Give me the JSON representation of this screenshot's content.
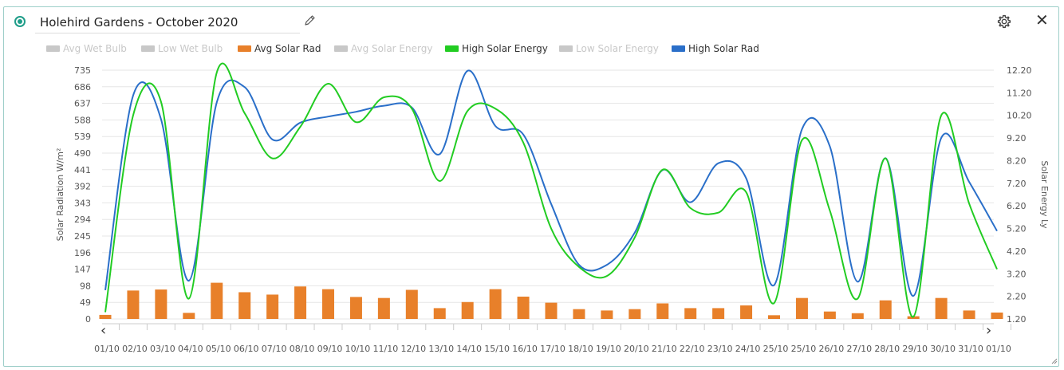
{
  "header": {
    "title": "Holehird Gardens - October 2020"
  },
  "icons": {
    "radio": "radio-selected-icon",
    "edit": "pencil-icon",
    "settings": "gear-icon",
    "close": "close-icon",
    "prev": "chevron-left-icon",
    "next": "chevron-right-icon",
    "resize": "resize-handle-icon"
  },
  "close_glyph": "✕",
  "nav": {
    "prev_glyph": "‹",
    "next_glyph": "›"
  },
  "legend": [
    {
      "label": "Avg Wet Bulb",
      "color": "#c8c8c8",
      "enabled": false
    },
    {
      "label": "Low Wet Bulb",
      "color": "#c8c8c8",
      "enabled": false
    },
    {
      "label": "Avg Solar Rad",
      "color": "#e8802a",
      "enabled": true
    },
    {
      "label": "Avg Solar Energy",
      "color": "#c8c8c8",
      "enabled": false
    },
    {
      "label": "High Solar Energy",
      "color": "#22cc22",
      "enabled": true
    },
    {
      "label": "Low Solar Energy",
      "color": "#c8c8c8",
      "enabled": false
    },
    {
      "label": "High Solar Rad",
      "color": "#2a6fc9",
      "enabled": true
    }
  ],
  "chart_data": {
    "type": "bar+line",
    "title": "Holehird Gardens - October 2020",
    "categories": [
      "01/10",
      "02/10",
      "03/10",
      "04/10",
      "05/10",
      "06/10",
      "07/10",
      "08/10",
      "09/10",
      "10/10",
      "11/10",
      "12/10",
      "13/10",
      "14/10",
      "15/10",
      "16/10",
      "17/10",
      "18/10",
      "19/10",
      "20/10",
      "21/10",
      "22/10",
      "23/10",
      "24/10",
      "25/10",
      "25/10",
      "26/10",
      "27/10",
      "28/10",
      "29/10",
      "30/10",
      "31/10",
      "01/10"
    ],
    "ylabel_left": "Solar Radiation W/m²",
    "ylabel_right": "Solar Energy Ly",
    "y_left_ticks": [
      "735",
      "686",
      "637",
      "588",
      "539",
      "490",
      "441",
      "392",
      "343",
      "294",
      "245",
      "196",
      "147",
      "98",
      "49",
      "0"
    ],
    "y_right_ticks": [
      "12.20",
      "11.20",
      "10.20",
      "9.20",
      "8.20",
      "7.20",
      "6.20",
      "5.20",
      "4.20",
      "3.20",
      "2.20",
      "1.20"
    ],
    "y_left_range": [
      0,
      735
    ],
    "y_right_range": [
      1.2,
      12.2
    ],
    "grid": true,
    "series": [
      {
        "name": "Avg Solar Rad",
        "kind": "bar",
        "axis": "left",
        "color": "#e8802a",
        "values": [
          12,
          84,
          87,
          18,
          107,
          79,
          72,
          96,
          88,
          65,
          62,
          86,
          32,
          50,
          88,
          66,
          48,
          29,
          25,
          29,
          46,
          32,
          32,
          40,
          11,
          62,
          22,
          17,
          55,
          8,
          62,
          25,
          19
        ]
      },
      {
        "name": "High Solar Rad",
        "kind": "line",
        "axis": "left",
        "color": "#2a6fc9",
        "values": [
          85,
          660,
          590,
          113,
          640,
          685,
          530,
          580,
          598,
          612,
          630,
          625,
          487,
          733,
          570,
          545,
          340,
          160,
          160,
          255,
          440,
          345,
          460,
          415,
          100,
          560,
          510,
          110,
          475,
          68,
          535,
          405,
          260
        ]
      },
      {
        "name": "High Solar Energy",
        "kind": "line",
        "axis": "right",
        "color": "#22cc22",
        "values": [
          1.5,
          10.2,
          10.8,
          2.1,
          12.1,
          10.3,
          8.3,
          9.7,
          11.6,
          9.9,
          11.0,
          10.5,
          7.3,
          10.4,
          10.5,
          9.0,
          5.2,
          3.5,
          3.1,
          4.8,
          7.8,
          6.1,
          5.9,
          6.8,
          1.9,
          9.1,
          6.0,
          2.1,
          8.3,
          1.3,
          10.2,
          6.3,
          3.4
        ]
      }
    ]
  }
}
